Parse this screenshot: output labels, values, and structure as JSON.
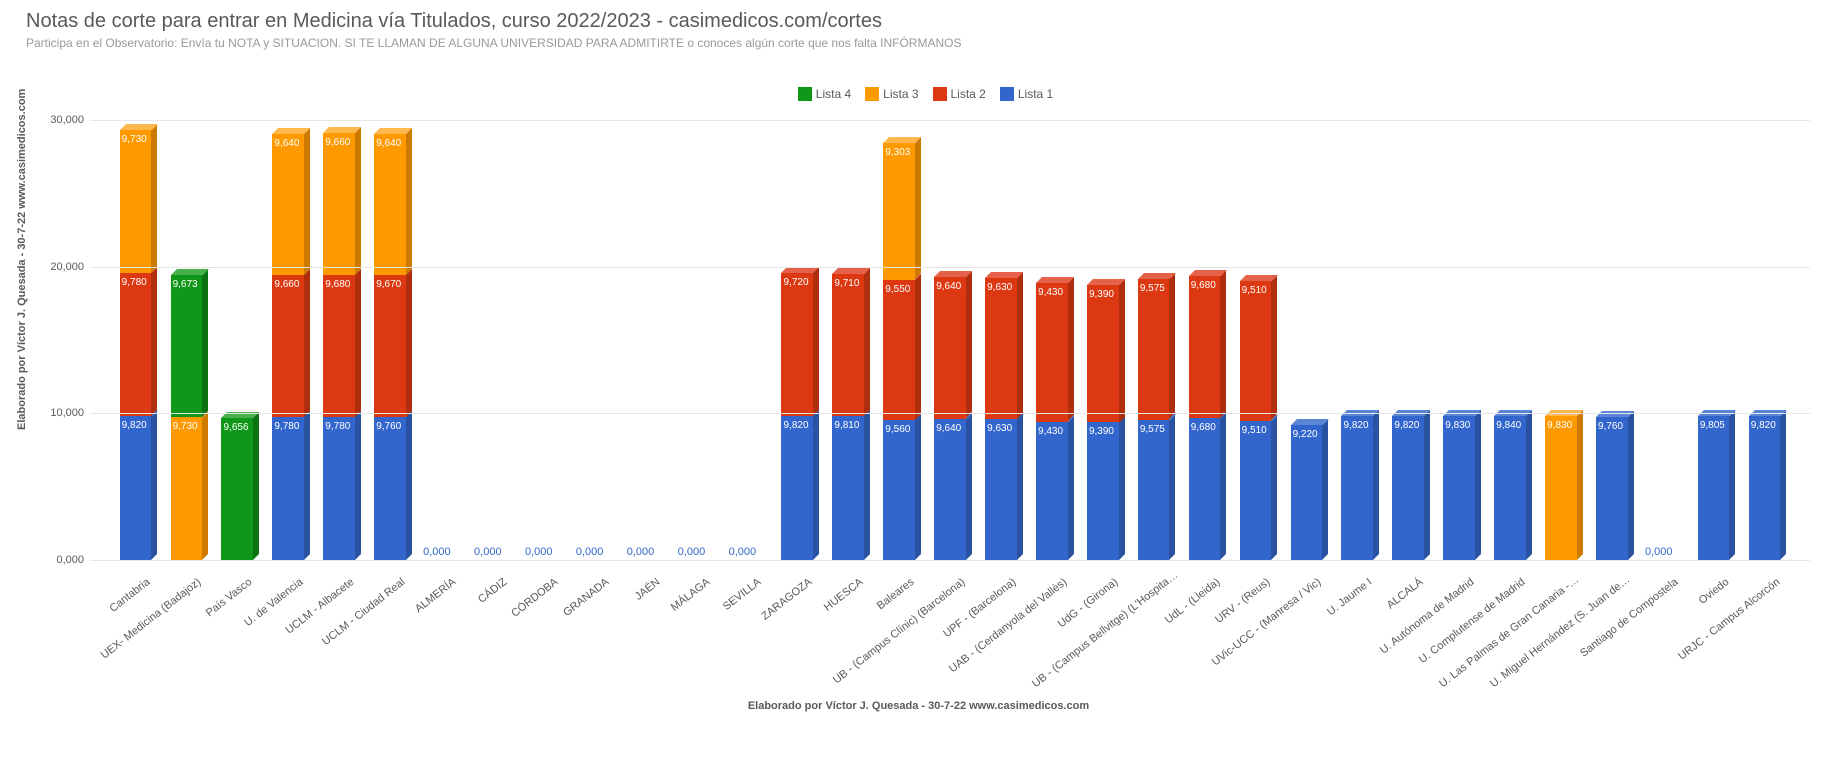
{
  "title": "Notas de corte para entrar en Medicina vía Titulados, curso 2022/2023 - casimedicos.com/cortes",
  "subtitle": "Participa en el Observatorio: Envía tu NOTA y SITUACION. SI TE LLAMAN DE ALGUNA UNIVERSIDAD PARA ADMITIRTE o conoces algún corte que nos falta INFÓRMANOS",
  "ylabel": "Elaborado por Víctor J. Quesada - 30-7-22   www.casimedicos.com",
  "footer": "Elaborado por Víctor J. Quesada - 30-7-22   www.casimedicos.com",
  "legend": [
    {
      "label": "Lista 4",
      "color": "#109618"
    },
    {
      "label": "Lista 3",
      "color": "#ff9900"
    },
    {
      "label": "Lista 2",
      "color": "#dc3912"
    },
    {
      "label": "Lista 1",
      "color": "#3366cc"
    }
  ],
  "chart": {
    "type": "stacked-bar-3d",
    "ylim": [
      0,
      30000
    ],
    "yticks": [
      0,
      10000,
      20000,
      30000
    ],
    "ytick_labels": [
      "0,000",
      "10,000",
      "20,000",
      "30,000"
    ],
    "bg": "#ffffff",
    "grid_color": "#e6e6e6",
    "bar_label_color": "#ffffff",
    "zero_label_color": "#3366cc",
    "categories": [
      "Cantabria",
      "UEX- Medicina (Badajoz)",
      "País Vasco",
      "U. de Valencia",
      "UCLM - Albacete",
      "UCLM - Ciudad Real",
      "ALMERÍA",
      "CÁDIZ",
      "CÓRDOBA",
      "GRANADA",
      "JAÉN",
      "MÁLAGA",
      "SEVILLA",
      "ZARAGOZA",
      "HUESCA",
      "Baleares",
      "UB - (Campus Clínic) (Barcelona)",
      "UPF - (Barcelona)",
      "UAB - (Cerdanyola del Vallès)",
      "UdG - (Girona)",
      "UB - (Campus Bellvitge) (L'Hospita…",
      "UdL - (Lleida)",
      "URV - (Reus)",
      "UVic-UCC - (Manresa / Vic)",
      "U. Jaume I",
      "ALCALÁ",
      "U. Autónoma de Madrid",
      "U. Complutense de Madrid",
      "U. Las Palmas de Gran Canaria -…",
      "U. Miguel Hernández (S. Juan de…",
      "Santiago de Compostela",
      "Oviedo",
      "URJC - Campus Alcorcón"
    ],
    "series": [
      {
        "name": "Lista 1",
        "color": "#3366cc",
        "side": "#2a52a3",
        "top": "#5b85d6",
        "values": [
          9820,
          null,
          null,
          9780,
          9780,
          9760,
          0,
          0,
          0,
          0,
          0,
          0,
          0,
          9820,
          9810,
          9560,
          9640,
          9630,
          9430,
          9390,
          9575,
          9680,
          9510,
          9220,
          9820,
          9820,
          9830,
          9840,
          null,
          9760,
          0,
          9805,
          9820
        ],
        "labels": [
          "9,820",
          null,
          null,
          "9,780",
          "9,780",
          "9,760",
          "0,000",
          "0,000",
          "0,000",
          "0,000",
          "0,000",
          "0,000",
          "0,000",
          "9,820",
          "9,810",
          "9,560",
          "9,640",
          "9,630",
          "9,430",
          "9,390",
          "9,575",
          "9,680",
          "9,510",
          "9,220",
          "9,820",
          "9,820",
          "9,830",
          "9,840",
          null,
          "9,760",
          "0,000",
          "9,805",
          "9,820"
        ]
      },
      {
        "name": "Lista 2",
        "color": "#dc3912",
        "side": "#b02e0e",
        "top": "#e6614a",
        "values": [
          9780,
          null,
          null,
          9660,
          9680,
          9670,
          null,
          null,
          null,
          null,
          null,
          null,
          null,
          9720,
          9710,
          9550,
          9640,
          9630,
          9430,
          9390,
          9575,
          9680,
          9510,
          null,
          null,
          null,
          null,
          null,
          null,
          null,
          null,
          null,
          null
        ],
        "labels": [
          "9,780",
          null,
          null,
          "9,660",
          "9,680",
          "9,670",
          null,
          null,
          null,
          null,
          null,
          null,
          null,
          "9,720",
          "9,710",
          "9,550",
          "9,640",
          "9,630",
          "9,430",
          "9,390",
          "9,575",
          "9,680",
          "9,510",
          null,
          null,
          null,
          null,
          null,
          null,
          null,
          null,
          null,
          null
        ]
      },
      {
        "name": "Lista 3",
        "color": "#ff9900",
        "side": "#cc7a00",
        "top": "#ffb84d",
        "values": [
          9730,
          9730,
          null,
          9640,
          9660,
          9640,
          null,
          null,
          null,
          null,
          null,
          null,
          null,
          null,
          null,
          9303,
          null,
          null,
          null,
          null,
          null,
          null,
          null,
          null,
          null,
          null,
          null,
          null,
          9830,
          null,
          null,
          null,
          null
        ],
        "labels": [
          "9,730",
          "9,730",
          null,
          "9,640",
          "9,660",
          "9,640",
          null,
          null,
          null,
          null,
          null,
          null,
          null,
          null,
          null,
          "9,303",
          null,
          null,
          null,
          null,
          null,
          null,
          null,
          null,
          null,
          null,
          null,
          null,
          "9,830",
          null,
          null,
          null,
          null
        ]
      },
      {
        "name": "Lista 4",
        "color": "#109618",
        "side": "#0c7312",
        "top": "#45b04c",
        "values": [
          null,
          9673,
          9656,
          null,
          null,
          null,
          null,
          null,
          null,
          null,
          null,
          null,
          null,
          null,
          null,
          null,
          null,
          null,
          null,
          null,
          null,
          null,
          null,
          null,
          null,
          null,
          null,
          null,
          null,
          null,
          null,
          null,
          null
        ],
        "labels": [
          null,
          "9,673",
          "9,656",
          null,
          null,
          null,
          null,
          null,
          null,
          null,
          null,
          null,
          null,
          null,
          null,
          null,
          null,
          null,
          null,
          null,
          null,
          null,
          null,
          null,
          null,
          null,
          null,
          null,
          null,
          null,
          null,
          null,
          null
        ]
      }
    ]
  }
}
